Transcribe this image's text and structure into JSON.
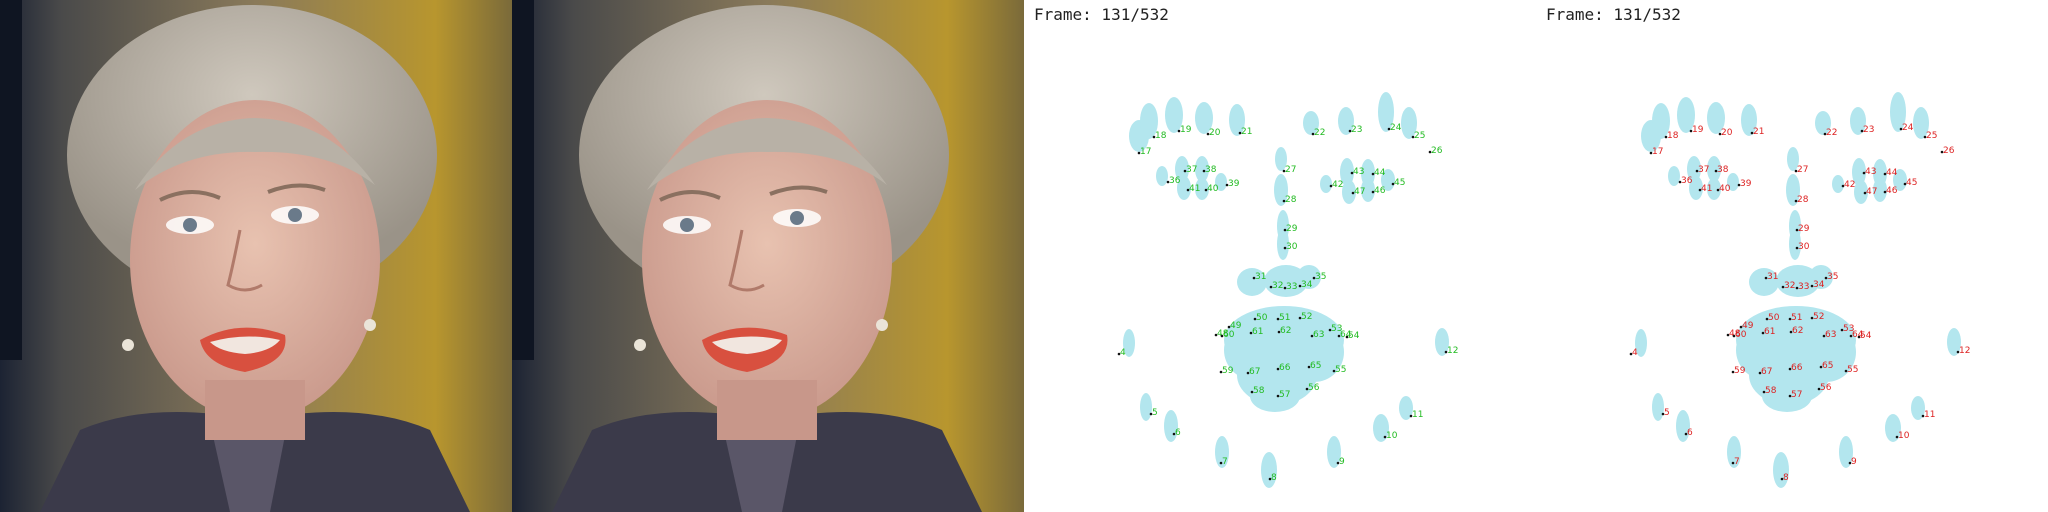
{
  "frames": {
    "green_panel_label": "Frame: 131/532",
    "red_panel_label": "Frame: 131/532"
  },
  "colors": {
    "blob": "#b3e6ee",
    "green_label": "#22bb22",
    "red_label": "#dd2222",
    "dot": "#111111"
  },
  "landmarks": {
    "green_labels": [
      "4",
      "5",
      "6",
      "7",
      "8",
      "9",
      "10",
      "11",
      "12",
      "17",
      "18",
      "19",
      "20",
      "21",
      "22",
      "23",
      "24",
      "25",
      "26",
      "27",
      "28",
      "29",
      "30",
      "31",
      "32",
      "33",
      "34",
      "35",
      "36",
      "37",
      "38",
      "39",
      "40",
      "41",
      "42",
      "43",
      "44",
      "45",
      "46",
      "47",
      "48",
      "49",
      "50",
      "51",
      "52",
      "53",
      "54",
      "55",
      "56",
      "57",
      "58",
      "59",
      "60",
      "61",
      "62",
      "63",
      "64",
      "65",
      "66",
      "67"
    ],
    "red_labels": [
      "4",
      "5",
      "6",
      "7",
      "8",
      "9",
      "10",
      "11",
      "12",
      "17",
      "18",
      "19",
      "20",
      "21",
      "22",
      "23",
      "24",
      "25",
      "26",
      "27",
      "28",
      "29",
      "30",
      "31",
      "32",
      "33",
      "34",
      "35",
      "36",
      "37",
      "38",
      "39",
      "40",
      "41",
      "42",
      "43",
      "44",
      "45",
      "46",
      "47",
      "48",
      "49",
      "50",
      "51",
      "52",
      "53",
      "54",
      "55",
      "56",
      "57",
      "58",
      "59",
      "60",
      "61",
      "62",
      "63",
      "64",
      "65",
      "66",
      "67"
    ]
  }
}
